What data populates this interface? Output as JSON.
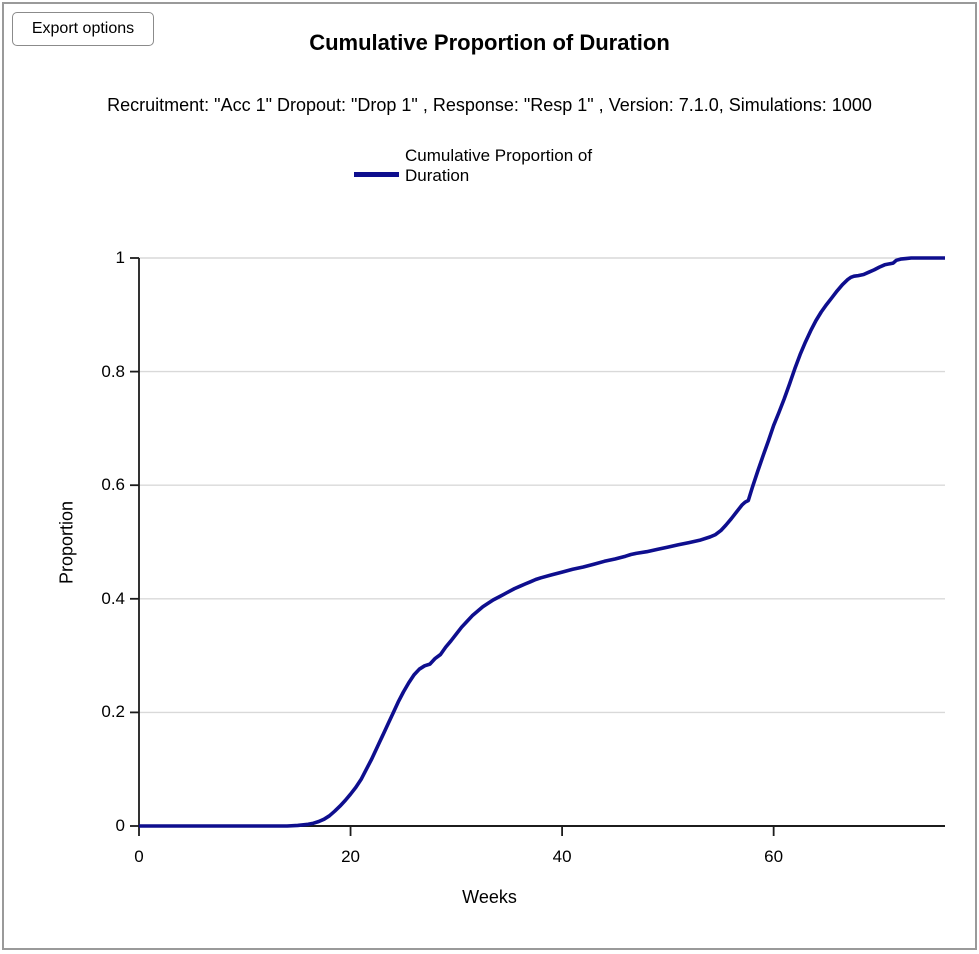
{
  "export_button": {
    "label": "Export options"
  },
  "header": {
    "title": "Cumulative Proportion of Duration",
    "subtitle": "Recruitment: \"Acc 1\" Dropout: \"Drop 1\" , Response: \"Resp 1\" , Version: 7.1.0, Simulations: 1000"
  },
  "legend": {
    "label": "Cumulative Proportion of Duration"
  },
  "colors": {
    "line": "#0e0e8e",
    "grid": "#d9d9d9",
    "axis": "#1c1c1c",
    "frame_border": "#9a9a9a"
  },
  "chart_data": {
    "type": "line",
    "title": "Cumulative Proportion of Duration",
    "xlabel": "Weeks",
    "ylabel": "Proportion",
    "xlim": [
      0,
      76.2
    ],
    "ylim": [
      0,
      1
    ],
    "grid": "horizontal",
    "legend_position": "top",
    "xticks": [
      {
        "v": 0,
        "label": "0"
      },
      {
        "v": 20,
        "label": "20"
      },
      {
        "v": 40,
        "label": "40"
      },
      {
        "v": 60,
        "label": "60"
      }
    ],
    "yticks": [
      {
        "v": 0,
        "label": "0"
      },
      {
        "v": 0.2,
        "label": "0.2"
      },
      {
        "v": 0.4,
        "label": "0.4"
      },
      {
        "v": 0.6,
        "label": "0.6"
      },
      {
        "v": 0.8,
        "label": "0.8"
      },
      {
        "v": 1,
        "label": "1"
      }
    ],
    "series": [
      {
        "name": "Cumulative Proportion of Duration",
        "color": "#0e0e8e",
        "points": [
          [
            0,
            0
          ],
          [
            5,
            0
          ],
          [
            10,
            0
          ],
          [
            14,
            0
          ],
          [
            15,
            0.001
          ],
          [
            16,
            0.003
          ],
          [
            16.5,
            0.005
          ],
          [
            17,
            0.008
          ],
          [
            17.5,
            0.012
          ],
          [
            18,
            0.018
          ],
          [
            18.5,
            0.026
          ],
          [
            19,
            0.035
          ],
          [
            19.5,
            0.045
          ],
          [
            20,
            0.056
          ],
          [
            20.5,
            0.068
          ],
          [
            21,
            0.082
          ],
          [
            21.5,
            0.1
          ],
          [
            22,
            0.118
          ],
          [
            22.5,
            0.138
          ],
          [
            23,
            0.158
          ],
          [
            23.5,
            0.178
          ],
          [
            24,
            0.198
          ],
          [
            24.5,
            0.218
          ],
          [
            25,
            0.236
          ],
          [
            25.5,
            0.252
          ],
          [
            26,
            0.266
          ],
          [
            26.5,
            0.276
          ],
          [
            27,
            0.282
          ],
          [
            27.5,
            0.285
          ],
          [
            28,
            0.295
          ],
          [
            28.5,
            0.302
          ],
          [
            29,
            0.315
          ],
          [
            29.5,
            0.326
          ],
          [
            30,
            0.338
          ],
          [
            30.5,
            0.35
          ],
          [
            31,
            0.36
          ],
          [
            31.5,
            0.37
          ],
          [
            32,
            0.378
          ],
          [
            32.5,
            0.386
          ],
          [
            33,
            0.392
          ],
          [
            33.5,
            0.398
          ],
          [
            34,
            0.403
          ],
          [
            34.5,
            0.408
          ],
          [
            35,
            0.413
          ],
          [
            35.5,
            0.418
          ],
          [
            36,
            0.422
          ],
          [
            36.5,
            0.426
          ],
          [
            37,
            0.43
          ],
          [
            37.5,
            0.434
          ],
          [
            38,
            0.437
          ],
          [
            39,
            0.442
          ],
          [
            40,
            0.447
          ],
          [
            41,
            0.452
          ],
          [
            42,
            0.456
          ],
          [
            43,
            0.461
          ],
          [
            44,
            0.466
          ],
          [
            45,
            0.47
          ],
          [
            46,
            0.475
          ],
          [
            46.5,
            0.478
          ],
          [
            47,
            0.48
          ],
          [
            48,
            0.483
          ],
          [
            49,
            0.487
          ],
          [
            50,
            0.491
          ],
          [
            51,
            0.495
          ],
          [
            52,
            0.499
          ],
          [
            53,
            0.503
          ],
          [
            54,
            0.509
          ],
          [
            54.5,
            0.513
          ],
          [
            55,
            0.52
          ],
          [
            55.5,
            0.53
          ],
          [
            56,
            0.541
          ],
          [
            56.5,
            0.553
          ],
          [
            57,
            0.565
          ],
          [
            57.3,
            0.57
          ],
          [
            57.6,
            0.573
          ],
          [
            58,
            0.597
          ],
          [
            58.5,
            0.625
          ],
          [
            59,
            0.652
          ],
          [
            59.5,
            0.678
          ],
          [
            60,
            0.705
          ],
          [
            60.5,
            0.728
          ],
          [
            61,
            0.752
          ],
          [
            61.5,
            0.778
          ],
          [
            62,
            0.805
          ],
          [
            62.5,
            0.83
          ],
          [
            63,
            0.852
          ],
          [
            63.5,
            0.872
          ],
          [
            64,
            0.89
          ],
          [
            64.5,
            0.905
          ],
          [
            65,
            0.918
          ],
          [
            65.5,
            0.93
          ],
          [
            66,
            0.942
          ],
          [
            66.5,
            0.953
          ],
          [
            67,
            0.962
          ],
          [
            67.3,
            0.966
          ],
          [
            67.6,
            0.968
          ],
          [
            68,
            0.969
          ],
          [
            68.5,
            0.971
          ],
          [
            69,
            0.975
          ],
          [
            69.5,
            0.979
          ],
          [
            70,
            0.984
          ],
          [
            70.5,
            0.988
          ],
          [
            71,
            0.99
          ],
          [
            71.3,
            0.991
          ],
          [
            71.6,
            0.996
          ],
          [
            72,
            0.998
          ],
          [
            72.5,
            0.999
          ],
          [
            73,
            1
          ],
          [
            76.2,
            1
          ]
        ]
      }
    ]
  }
}
